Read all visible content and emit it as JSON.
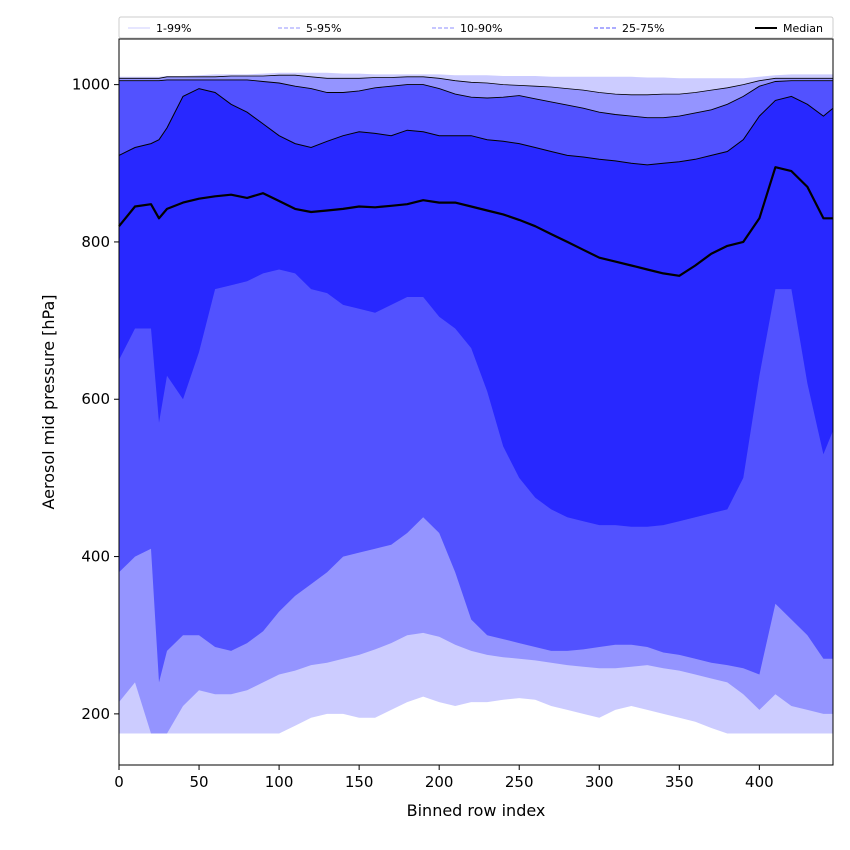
{
  "chart_data": {
    "type": "area",
    "xlabel": "Binned row index",
    "ylabel": "Aerosol mid pressure [hPa]",
    "xlim": [
      0,
      446
    ],
    "ylim": [
      135,
      1058
    ],
    "xticks": [
      0,
      50,
      100,
      150,
      200,
      250,
      300,
      350,
      400
    ],
    "yticks": [
      200,
      400,
      600,
      800,
      1000
    ],
    "grid": false,
    "legend_position": "top",
    "x": [
      0,
      10,
      20,
      25,
      30,
      40,
      50,
      60,
      70,
      80,
      90,
      100,
      110,
      120,
      130,
      140,
      150,
      160,
      170,
      180,
      190,
      200,
      210,
      220,
      230,
      240,
      250,
      260,
      270,
      280,
      290,
      300,
      310,
      320,
      330,
      340,
      350,
      360,
      370,
      380,
      390,
      400,
      410,
      420,
      430,
      440,
      446
    ],
    "bands": [
      {
        "name": "1-99%",
        "color": "#ccccff",
        "lower": [
          175,
          175,
          175,
          175,
          175,
          175,
          175,
          175,
          175,
          175,
          175,
          175,
          185,
          195,
          200,
          200,
          195,
          195,
          205,
          215,
          222,
          215,
          210,
          215,
          215,
          218,
          220,
          218,
          210,
          205,
          200,
          195,
          205,
          210,
          205,
          200,
          195,
          190,
          182,
          175,
          175,
          175,
          175,
          175,
          175,
          175,
          175
        ],
        "upper": [
          1010,
          1010,
          1010,
          1010,
          1011,
          1011,
          1012,
          1013,
          1013,
          1013,
          1014,
          1015,
          1015,
          1015,
          1015,
          1014,
          1014,
          1013,
          1013,
          1013,
          1013,
          1013,
          1012,
          1012,
          1012,
          1011,
          1011,
          1011,
          1010,
          1010,
          1010,
          1010,
          1010,
          1010,
          1009,
          1009,
          1008,
          1008,
          1008,
          1008,
          1008,
          1010,
          1012,
          1013,
          1013,
          1013,
          1013
        ]
      },
      {
        "name": "5-95%",
        "color": "#9494ff",
        "lower": [
          215,
          240,
          175,
          175,
          175,
          210,
          230,
          225,
          225,
          230,
          240,
          250,
          255,
          262,
          265,
          270,
          275,
          282,
          290,
          300,
          303,
          298,
          288,
          280,
          275,
          272,
          270,
          268,
          265,
          262,
          260,
          258,
          258,
          260,
          262,
          258,
          255,
          250,
          245,
          240,
          225,
          205,
          225,
          210,
          205,
          200,
          200
        ],
        "upper": [
          1008,
          1008,
          1008,
          1008,
          1010,
          1010,
          1010,
          1010,
          1011,
          1011,
          1011,
          1012,
          1012,
          1010,
          1008,
          1008,
          1008,
          1009,
          1009,
          1010,
          1010,
          1008,
          1005,
          1003,
          1002,
          1000,
          999,
          998,
          997,
          995,
          993,
          990,
          988,
          987,
          987,
          988,
          988,
          990,
          993,
          996,
          1000,
          1005,
          1008,
          1008,
          1008,
          1008,
          1008
        ]
      },
      {
        "name": "10-90%",
        "color": "#5252ff",
        "lower": [
          380,
          400,
          410,
          240,
          280,
          300,
          300,
          285,
          280,
          290,
          305,
          330,
          350,
          365,
          380,
          400,
          405,
          410,
          415,
          430,
          450,
          430,
          380,
          320,
          300,
          295,
          290,
          285,
          280,
          280,
          282,
          285,
          288,
          288,
          285,
          278,
          275,
          270,
          265,
          262,
          258,
          250,
          340,
          320,
          300,
          270,
          270
        ],
        "upper": [
          1005,
          1005,
          1005,
          1005,
          1006,
          1006,
          1006,
          1006,
          1006,
          1006,
          1004,
          1002,
          998,
          995,
          990,
          990,
          992,
          996,
          998,
          1000,
          1000,
          995,
          988,
          984,
          983,
          984,
          986,
          982,
          978,
          974,
          970,
          965,
          962,
          960,
          958,
          958,
          960,
          964,
          968,
          975,
          985,
          998,
          1004,
          1005,
          1005,
          1005,
          1005
        ]
      },
      {
        "name": "25-75%",
        "color": "#2828ff",
        "lower": [
          650,
          690,
          690,
          570,
          630,
          600,
          660,
          740,
          745,
          750,
          760,
          765,
          760,
          740,
          735,
          720,
          715,
          710,
          720,
          730,
          730,
          705,
          690,
          665,
          610,
          540,
          500,
          475,
          460,
          450,
          445,
          440,
          440,
          438,
          438,
          440,
          445,
          450,
          455,
          460,
          500,
          630,
          740,
          740,
          620,
          530,
          560
        ],
        "upper": [
          910,
          920,
          925,
          930,
          945,
          985,
          995,
          990,
          975,
          965,
          950,
          935,
          925,
          920,
          928,
          935,
          940,
          938,
          935,
          942,
          940,
          935,
          935,
          935,
          930,
          928,
          925,
          920,
          915,
          910,
          908,
          905,
          903,
          900,
          898,
          900,
          902,
          905,
          910,
          915,
          930,
          960,
          980,
          985,
          975,
          960,
          970
        ]
      }
    ],
    "series": [
      {
        "name": "Median",
        "color": "#000000",
        "values": [
          820,
          845,
          848,
          830,
          842,
          850,
          855,
          858,
          860,
          856,
          862,
          852,
          842,
          838,
          840,
          842,
          845,
          844,
          846,
          848,
          853,
          850,
          850,
          845,
          840,
          835,
          828,
          820,
          810,
          800,
          790,
          780,
          775,
          770,
          765,
          760,
          757,
          770,
          785,
          795,
          800,
          830,
          895,
          890,
          870,
          830,
          830
        ]
      }
    ],
    "band_edge_lines": [
      {
        "of": "5-95%",
        "edge": "upper",
        "color": "#000000",
        "width": 0.8
      },
      {
        "of": "10-90%",
        "edge": "upper",
        "color": "#000000",
        "width": 0.9
      },
      {
        "of": "25-75%",
        "edge": "upper",
        "color": "#000000",
        "width": 1.0
      }
    ],
    "legend": [
      {
        "label": "1-99%",
        "color": "#ccccff",
        "style": "solid"
      },
      {
        "label": "5-95%",
        "color": "#9494ff",
        "style": "dashed"
      },
      {
        "label": "10-90%",
        "color": "#8c8cff",
        "style": "dashed"
      },
      {
        "label": "25-75%",
        "color": "#5a5aff",
        "style": "dashed"
      },
      {
        "label": "Median",
        "color": "#000000",
        "style": "solid-thick"
      }
    ]
  }
}
